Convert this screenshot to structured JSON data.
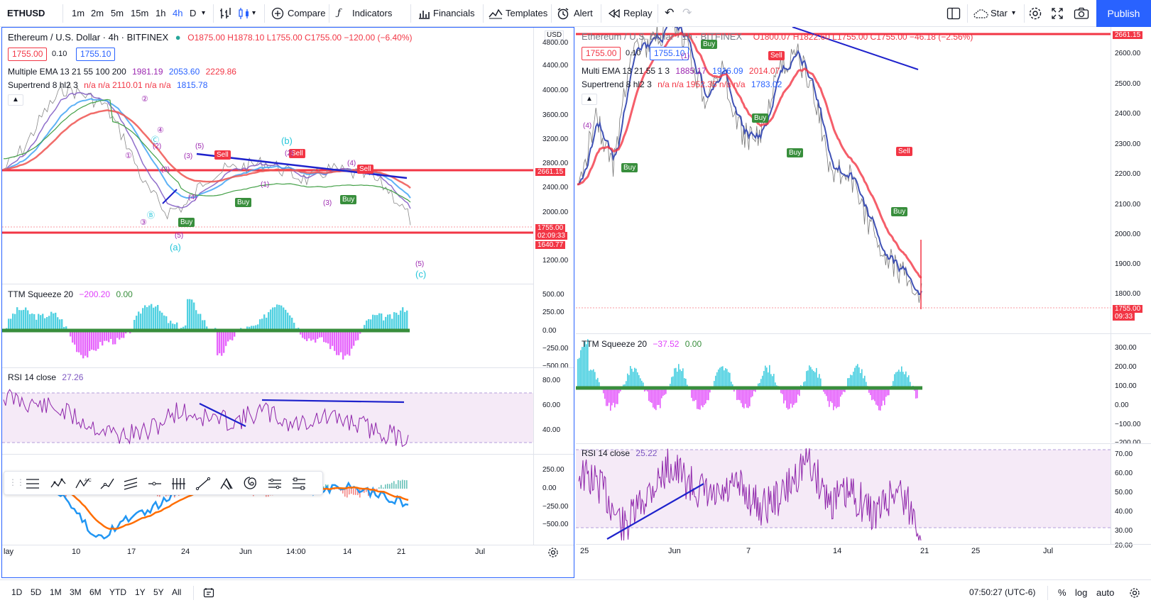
{
  "toolbar": {
    "symbol": "ETHUSD",
    "intervals": [
      "1m",
      "2m",
      "5m",
      "15m",
      "1h",
      "4h",
      "D"
    ],
    "active_interval": "4h",
    "compare": "Compare",
    "indicators": "Indicators",
    "financials": "Financials",
    "templates": "Templates",
    "alert": "Alert",
    "replay": "Replay",
    "star": "Star",
    "publish": "Publish"
  },
  "left_chart": {
    "title": "Ethereum / U.S. Dollar · 4h · BITFINEX",
    "ohlc": "O1875.00 H1878.10 L1755.00 C1755.00 −120.00 (−6.40%)",
    "bid": "1755.00",
    "spread": "0.10",
    "ask": "1755.10",
    "currency": "USD",
    "ema_label": "Multiple EMA 13 21 55 100 200",
    "ema_values": [
      "1981.19",
      "2053.60",
      "2229.86"
    ],
    "supertrend_label": "Supertrend 8 hl2 3",
    "supertrend_values": "n/a n/a 2110.01 n/a n/a",
    "supertrend_last": "1815.78",
    "price_axis": [
      "4800.00",
      "4400.00",
      "4000.00",
      "3600.00",
      "3200.00",
      "2800.00",
      "2400.00",
      "2000.00",
      "1200.00"
    ],
    "price_tags": [
      {
        "text": "2661.15",
        "color": "#f23645"
      },
      {
        "text": "1755.00",
        "color": "#f23645"
      },
      {
        "text": "02:09:33",
        "color": "#f23645"
      },
      {
        "text": "1640.77",
        "color": "#f23645"
      }
    ],
    "signals": [
      "Sell",
      "Sell",
      "Sell",
      "Buy",
      "Buy",
      "Buy"
    ],
    "waves": [
      "①",
      "②",
      "③",
      "④",
      "Ⓑ",
      "Ⓒ",
      "(2)",
      "(3)",
      "(4)",
      "(5)",
      "(1)",
      "(3)",
      "(4)",
      "(5)",
      "(a)",
      "(b)",
      "(c)",
      "(5)",
      "(3)",
      "(2)"
    ],
    "ttm_label": "TTM Squeeze 20",
    "ttm_values": [
      "−200.20",
      "0.00"
    ],
    "ttm_axis": [
      "500.00",
      "250.00",
      "0.00",
      "−250.00",
      "−500.00"
    ],
    "rsi_label": "RSI 14 close",
    "rsi_value": "27.26",
    "rsi_axis": [
      "80.00",
      "60.00",
      "40.00"
    ],
    "macd_axis": [
      "250.00",
      "0.00",
      "−250.00",
      "−500.00"
    ],
    "time_axis": [
      "lay",
      "10",
      "17",
      "24",
      "Jun",
      "14:00",
      "14",
      "21",
      "Jul"
    ]
  },
  "right_chart": {
    "title": "Ethereum / U.S. Dollar · 1h · BITFINEX",
    "ohlc": "O1800.07 H1822.60 L1755.00 C1755.00 −46.18 (−2.56%)",
    "bid": "1755.00",
    "spread": "0.10",
    "ask": "1755.10",
    "ema_label": "Multi EMA 13 21 55 1 3",
    "ema_values": [
      "1885.17",
      "1916.09",
      "2014.07"
    ],
    "supertrend_label": "Supertrend 8 hl2 3",
    "supertrend_values": "n/a n/a 1952.35 n/a n/a",
    "supertrend_last": "1783.02",
    "price_axis": [
      "2600.00",
      "2500.00",
      "2400.00",
      "2300.00",
      "2200.00",
      "2100.00",
      "2000.00",
      "1900.00",
      "1800.00"
    ],
    "price_tags": [
      {
        "text": "2661.15",
        "color": "#f23645"
      },
      {
        "text": "1755.00",
        "color": "#f23645"
      },
      {
        "text": "09:33",
        "color": "#f23645"
      }
    ],
    "signals": [
      "Sell",
      "Sell",
      "Buy",
      "Buy",
      "Buy",
      "Buy",
      "Buy"
    ],
    "waves": [
      "(4)",
      "(1)"
    ],
    "ttm_label": "TTM Squeeze 20",
    "ttm_values": [
      "−37.52",
      "0.00"
    ],
    "ttm_axis": [
      "300.00",
      "200.00",
      "100.00",
      "0.00",
      "−100.00",
      "−200.00"
    ],
    "rsi_label": "RSI 14 close",
    "rsi_value": "25.22",
    "rsi_axis": [
      "70.00",
      "60.00",
      "50.00",
      "40.00",
      "30.00",
      "20.00"
    ],
    "time_axis": [
      "25",
      "Jun",
      "7",
      "14",
      "21",
      "25",
      "Jul"
    ]
  },
  "bottombar": {
    "ranges": [
      "1D",
      "5D",
      "1M",
      "3M",
      "6M",
      "YTD",
      "1Y",
      "5Y",
      "All"
    ],
    "clock": "07:50:27 (UTC-6)",
    "percent": "%",
    "log": "log",
    "auto": "auto"
  }
}
